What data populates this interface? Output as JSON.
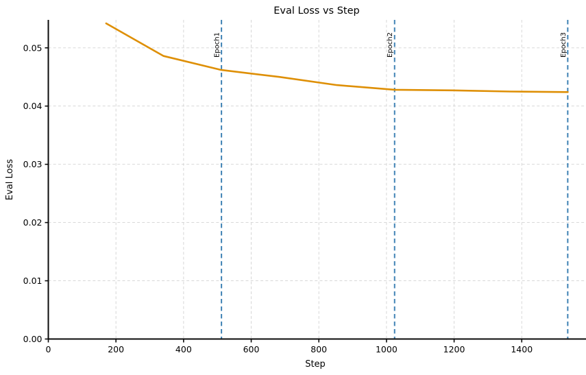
{
  "chart_data": {
    "type": "line",
    "title": "Eval Loss vs Step",
    "xlabel": "Step",
    "ylabel": "Eval Loss",
    "xlim": [
      0,
      1590
    ],
    "ylim": [
      0,
      0.0548
    ],
    "xticks": [
      0,
      200,
      400,
      600,
      800,
      1000,
      1200,
      1400
    ],
    "yticks": [
      0,
      0.01,
      0.02,
      0.03,
      0.04,
      0.05
    ],
    "ytick_labels": [
      "0.00",
      "0.01",
      "0.02",
      "0.03",
      "0.04",
      "0.05"
    ],
    "grid": true,
    "grid_style": "dashed",
    "legend": "none",
    "series": [
      {
        "name": "eval_loss",
        "color": "#DE8F05",
        "x": [
          171,
          341,
          512,
          683,
          853,
          1024,
          1195,
          1365,
          1536
        ],
        "y": [
          0.0542,
          0.0486,
          0.0462,
          0.045,
          0.0436,
          0.0428,
          0.0427,
          0.0425,
          0.0424
        ]
      }
    ],
    "epoch_markers": [
      {
        "label": "Epoch1",
        "step": 512
      },
      {
        "label": "Epoch2",
        "step": 1024
      },
      {
        "label": "Epoch3",
        "step": 1536
      }
    ],
    "colors": {
      "line": "#DE8F05",
      "epoch_marker": "#3E81B4",
      "grid": "#d2d2d2",
      "axis": "#0a0a0a",
      "text": "#000000"
    }
  }
}
